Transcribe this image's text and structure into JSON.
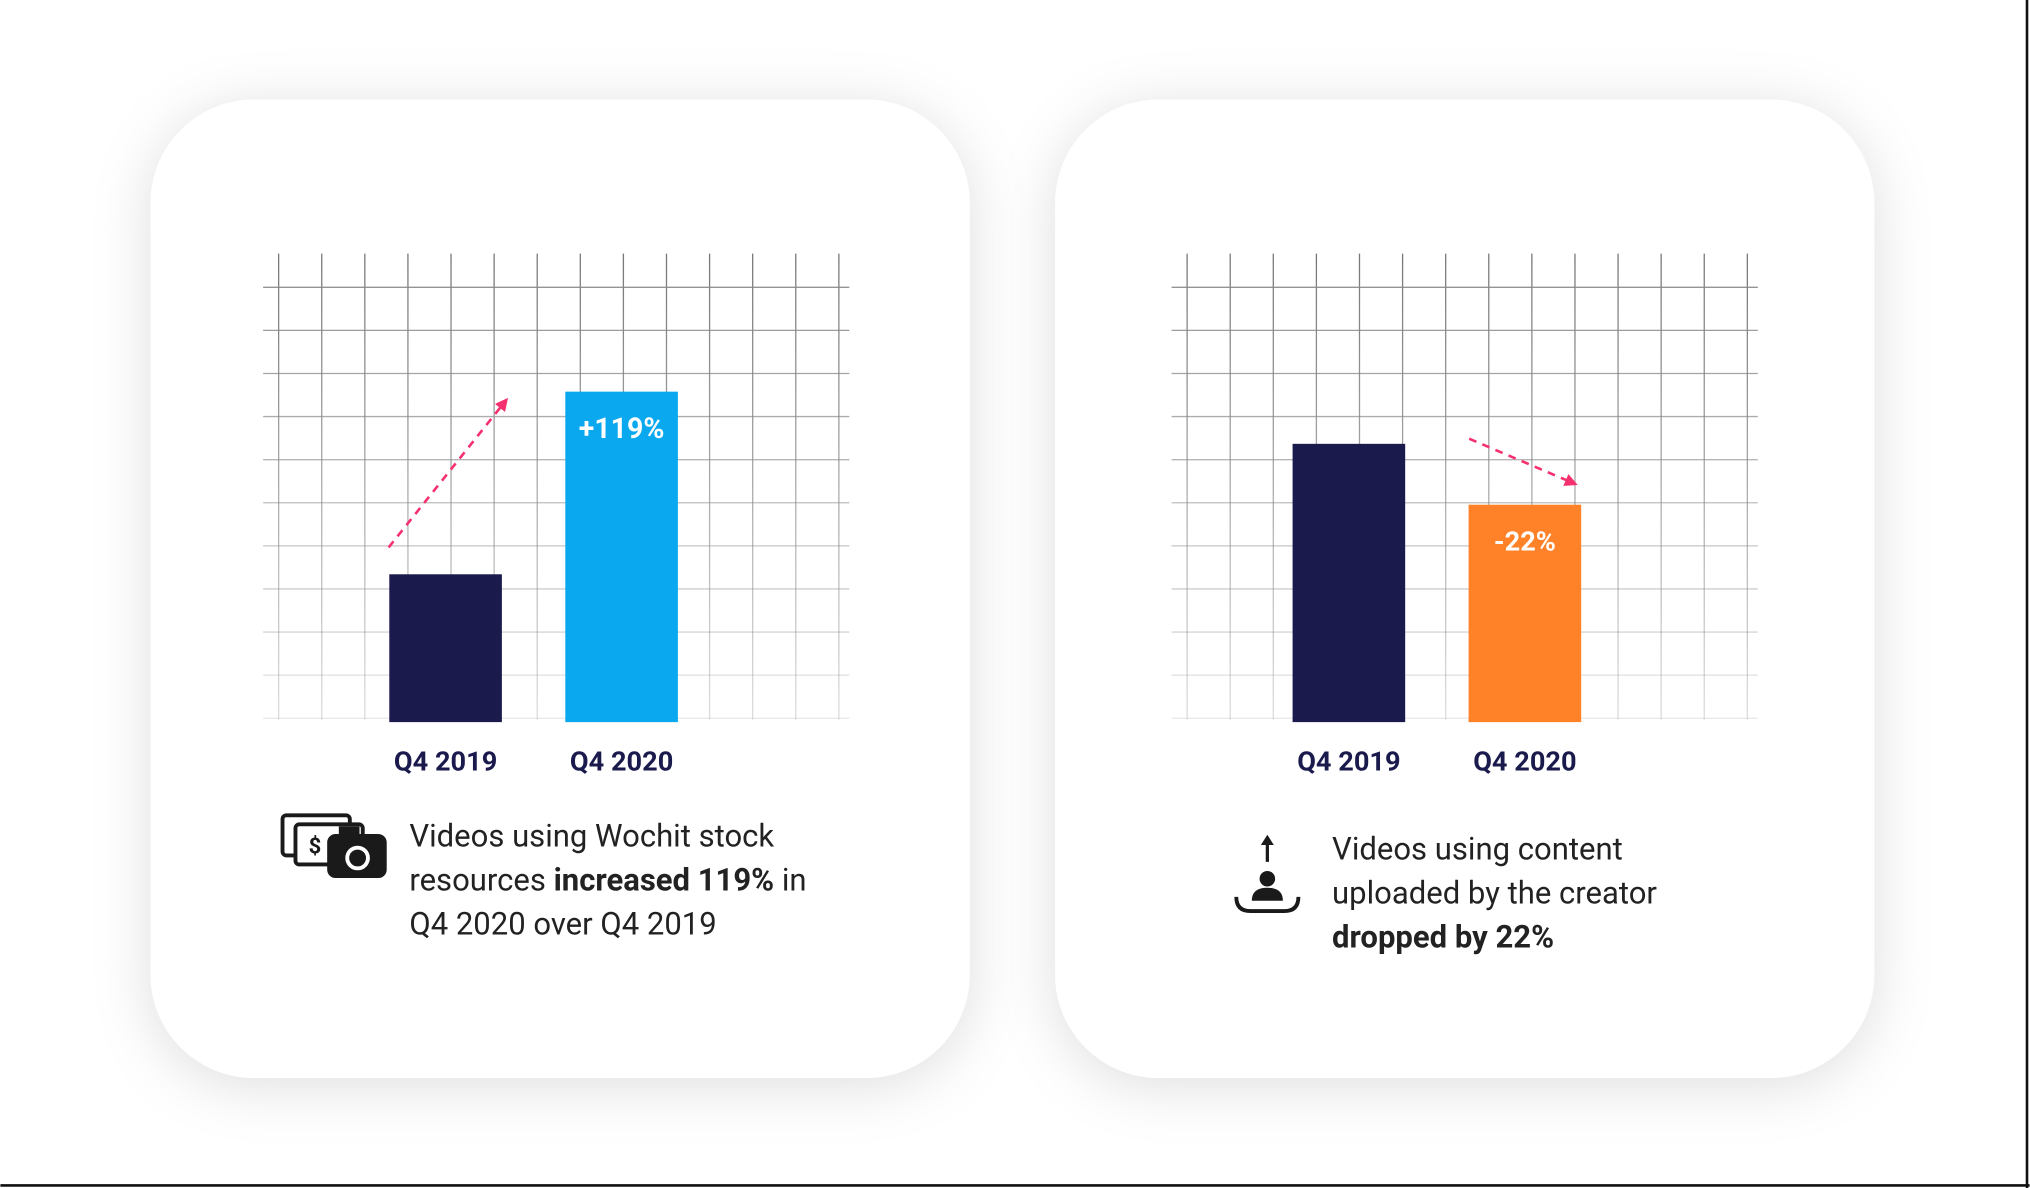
{
  "chart_data": [
    {
      "type": "bar",
      "categories": [
        "Q4 2019",
        "Q4 2020"
      ],
      "values": [
        3.4,
        7.6
      ],
      "colors": [
        "#1b1a4d",
        "#0aa8ef"
      ],
      "ylim": [
        0,
        10
      ],
      "annotation": "+119%",
      "caption": [
        [
          {
            "text": "Videos using Wochit stock"
          }
        ],
        [
          {
            "text": "resources "
          },
          {
            "text": "increased 119%",
            "bold": true
          },
          {
            "text": " in"
          }
        ],
        [
          {
            "text": "Q4 2020 over Q4 2019"
          }
        ]
      ]
    },
    {
      "type": "bar",
      "categories": [
        "Q4 2019",
        "Q4 2020"
      ],
      "values": [
        6.4,
        5.0
      ],
      "colors": [
        "#1b1a4d",
        "#ff8228"
      ],
      "ylim": [
        0,
        10
      ],
      "annotation": "-22%",
      "caption": [
        [
          {
            "text": "Videos using content"
          }
        ],
        [
          {
            "text": "uploaded by the creator"
          }
        ],
        [
          {
            "text": "dropped by 22%",
            "bold": true
          }
        ]
      ]
    }
  ]
}
